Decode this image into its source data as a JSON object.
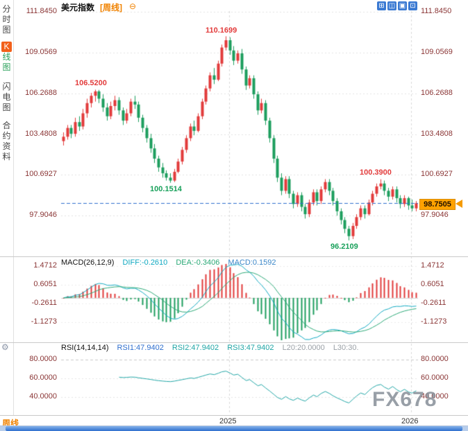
{
  "sidebar": {
    "items": [
      {
        "label": "分时图"
      },
      {
        "label": "闪电图"
      },
      {
        "label": "合约资料"
      }
    ],
    "kline": {
      "k": "K",
      "rest": "线图"
    },
    "gear_icon": "⚙",
    "bottom_label": "周线"
  },
  "header": {
    "title": "美元指数",
    "period_tag": "[周线]",
    "zoom_out_icon": "⊖"
  },
  "toolbar": {
    "icons": [
      {
        "name": "grid-view",
        "glyph": "⊞"
      },
      {
        "name": "split-view",
        "glyph": "◫"
      },
      {
        "name": "panel-view",
        "glyph": "▣"
      },
      {
        "name": "maximize-view",
        "glyph": "⊡"
      }
    ]
  },
  "price_axis": {
    "labels": [
      "111.8450",
      "109.0569",
      "106.2688",
      "103.4808",
      "100.6927",
      "97.9046"
    ]
  },
  "annotations": {
    "swing_high_1": "106.5200",
    "peak": "110.1699",
    "swing_low_1": "100.1514",
    "swing_high_2": "100.3900",
    "swing_low_2": "96.2109"
  },
  "current_price": "98.7505",
  "macd_panel": {
    "title": "MACD(26,12,9)",
    "diff_label": "DIFF:-0.2610",
    "dea_label": "DEA:-0.3406",
    "macd_label": "MACD:0.1592",
    "axis": [
      "1.4712",
      "0.6051",
      "-0.2611",
      "-1.1273"
    ]
  },
  "rsi_panel": {
    "title": "RSI(14,14,14)",
    "rsi1_label": "RSI1:47.9402",
    "rsi2_label": "RSI2:47.9402",
    "rsi3_label": "RSI3:47.9402",
    "l20_label": "L20:20.0000",
    "l30_label": "L30:30.",
    "axis": [
      "80.0000",
      "60.0000",
      "40.0000"
    ]
  },
  "x_axis": {
    "labels": [
      "2025",
      "2026"
    ]
  },
  "watermark": "FX678",
  "chart_data": {
    "type": "candlestick",
    "instrument": "美元指数",
    "period": "周线",
    "y_axis_values": [
      111.845,
      109.0569,
      106.2688,
      103.4808,
      100.6927,
      97.9046
    ],
    "current_price": 98.7505,
    "marked_points": {
      "swing_high_1": 106.52,
      "peak": 110.1699,
      "swing_low_1": 100.1514,
      "swing_high_2": 100.39,
      "swing_low_2": 96.2109
    },
    "x_axis_years": [
      "2025",
      "2026"
    ],
    "ohlc": [
      [
        103.0,
        103.6,
        102.7,
        103.3
      ],
      [
        103.3,
        104.1,
        103.1,
        103.9
      ],
      [
        103.9,
        104.1,
        103.2,
        103.5
      ],
      [
        103.5,
        104.6,
        103.3,
        104.3
      ],
      [
        104.3,
        104.7,
        103.7,
        104.0
      ],
      [
        104.0,
        105.2,
        103.8,
        104.9
      ],
      [
        104.9,
        105.9,
        104.6,
        105.6
      ],
      [
        105.6,
        106.3,
        105.3,
        106.1
      ],
      [
        106.1,
        106.52,
        105.7,
        106.4
      ],
      [
        106.4,
        106.5,
        105.6,
        105.9
      ],
      [
        105.9,
        106.2,
        105.0,
        105.3
      ],
      [
        105.3,
        105.6,
        104.4,
        104.7
      ],
      [
        104.7,
        105.7,
        104.5,
        105.4
      ],
      [
        105.4,
        106.1,
        105.1,
        105.8
      ],
      [
        105.8,
        106.0,
        104.8,
        105.1
      ],
      [
        105.1,
        105.3,
        104.1,
        104.4
      ],
      [
        104.4,
        105.2,
        104.2,
        104.9
      ],
      [
        104.9,
        105.9,
        104.7,
        105.7
      ],
      [
        105.7,
        106.1,
        105.2,
        105.5
      ],
      [
        105.5,
        105.7,
        104.3,
        104.6
      ],
      [
        104.6,
        104.8,
        103.6,
        103.9
      ],
      [
        103.9,
        104.1,
        102.9,
        103.2
      ],
      [
        103.2,
        103.5,
        102.2,
        102.5
      ],
      [
        102.5,
        102.8,
        101.5,
        101.8
      ],
      [
        101.8,
        102.0,
        100.9,
        101.2
      ],
      [
        101.2,
        101.5,
        100.5,
        100.8
      ],
      [
        100.8,
        101.0,
        100.3,
        100.5
      ],
      [
        100.5,
        100.8,
        100.1514,
        100.3
      ],
      [
        100.3,
        101.1,
        100.2,
        100.9
      ],
      [
        100.9,
        101.8,
        100.8,
        101.6
      ],
      [
        101.6,
        102.6,
        101.4,
        102.4
      ],
      [
        102.4,
        103.4,
        102.2,
        103.2
      ],
      [
        103.2,
        104.2,
        103.0,
        104.0
      ],
      [
        104.0,
        104.4,
        103.4,
        103.7
      ],
      [
        103.7,
        104.9,
        103.6,
        104.7
      ],
      [
        104.7,
        105.9,
        104.5,
        105.7
      ],
      [
        105.7,
        106.8,
        105.5,
        106.6
      ],
      [
        106.6,
        107.7,
        106.4,
        107.5
      ],
      [
        107.5,
        108.0,
        106.9,
        107.2
      ],
      [
        107.2,
        108.5,
        107.1,
        108.3
      ],
      [
        108.3,
        109.6,
        108.1,
        109.4
      ],
      [
        109.4,
        110.1699,
        109.2,
        109.9
      ],
      [
        109.9,
        110.1,
        108.9,
        109.2
      ],
      [
        109.2,
        109.5,
        108.2,
        108.5
      ],
      [
        108.5,
        109.2,
        108.3,
        109.0
      ],
      [
        109.0,
        109.3,
        107.6,
        107.9
      ],
      [
        107.9,
        108.1,
        106.5,
        106.8
      ],
      [
        106.8,
        107.5,
        106.6,
        107.3
      ],
      [
        107.3,
        107.5,
        105.9,
        106.2
      ],
      [
        106.2,
        106.4,
        104.8,
        105.1
      ],
      [
        105.1,
        105.9,
        104.9,
        105.6
      ],
      [
        105.6,
        105.8,
        104.1,
        104.4
      ],
      [
        104.4,
        104.6,
        102.9,
        103.2
      ],
      [
        103.2,
        103.4,
        101.5,
        101.8
      ],
      [
        101.8,
        102.0,
        100.2,
        100.5
      ],
      [
        100.5,
        100.8,
        99.3,
        99.6
      ],
      [
        99.6,
        100.6,
        99.4,
        100.4
      ],
      [
        100.4,
        100.6,
        99.1,
        99.4
      ],
      [
        99.4,
        99.6,
        98.4,
        98.7
      ],
      [
        98.7,
        99.5,
        98.5,
        99.3
      ],
      [
        99.3,
        99.5,
        98.2,
        98.5
      ],
      [
        98.5,
        98.7,
        97.7,
        98.0
      ],
      [
        98.0,
        99.0,
        97.8,
        98.8
      ],
      [
        98.8,
        99.7,
        98.6,
        99.5
      ],
      [
        99.5,
        99.7,
        98.6,
        98.9
      ],
      [
        98.9,
        99.9,
        98.7,
        99.7
      ],
      [
        99.7,
        100.4,
        99.5,
        100.2
      ],
      [
        100.2,
        100.4,
        99.3,
        99.6
      ],
      [
        99.6,
        99.8,
        98.6,
        98.9
      ],
      [
        98.9,
        99.1,
        97.9,
        98.2
      ],
      [
        98.2,
        98.4,
        97.3,
        97.6
      ],
      [
        97.6,
        97.8,
        96.7,
        97.0
      ],
      [
        97.0,
        97.2,
        96.2109,
        96.5
      ],
      [
        96.5,
        97.4,
        96.3,
        97.2
      ],
      [
        97.2,
        98.0,
        97.0,
        97.8
      ],
      [
        97.8,
        98.6,
        97.6,
        98.4
      ],
      [
        98.4,
        98.6,
        97.7,
        98.0
      ],
      [
        98.0,
        99.0,
        97.9,
        98.8
      ],
      [
        98.8,
        99.6,
        98.6,
        99.4
      ],
      [
        99.4,
        100.1,
        99.2,
        99.9
      ],
      [
        99.9,
        100.39,
        99.7,
        100.1
      ],
      [
        100.1,
        100.3,
        99.3,
        99.6
      ],
      [
        99.6,
        99.8,
        98.9,
        99.2
      ],
      [
        99.2,
        99.9,
        99.0,
        99.7
      ],
      [
        99.7,
        99.9,
        98.8,
        99.1
      ],
      [
        99.1,
        99.3,
        98.4,
        98.7
      ],
      [
        98.7,
        99.3,
        98.5,
        99.1
      ],
      [
        99.1,
        99.2,
        98.3,
        98.6
      ],
      [
        98.6,
        99.0,
        98.2,
        98.4
      ],
      [
        98.4,
        98.9,
        98.2,
        98.7505
      ]
    ],
    "indicators": {
      "macd": {
        "params": [
          26,
          12,
          9
        ],
        "diff": -0.261,
        "dea": -0.3406,
        "macd": 0.1592,
        "axis": [
          1.4712,
          0.6051,
          -0.2611,
          -1.1273
        ]
      },
      "rsi": {
        "params": [
          14,
          14,
          14
        ],
        "rsi1": 47.9402,
        "rsi2": 47.9402,
        "rsi3": 47.9402,
        "levels": [
          20.0,
          30.0
        ],
        "axis": [
          80.0,
          60.0,
          40.0
        ]
      }
    },
    "colors": {
      "up": "#e23b3b",
      "down": "#1d9e5e",
      "diff_line": "#0fa8c0",
      "dea_line": "#2aa876",
      "rsi_line": "#1fa5a5",
      "price_line": "#2f6fce",
      "price_tag_bg": "#ffa200",
      "accent_orange": "#f08200"
    }
  }
}
